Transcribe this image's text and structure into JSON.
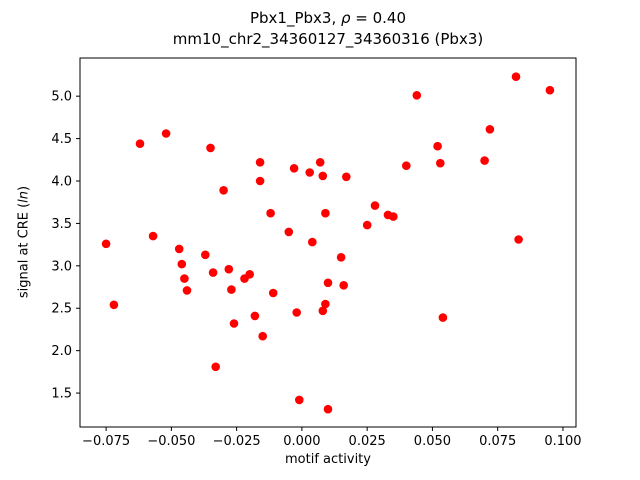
{
  "chart_data": {
    "type": "scatter",
    "title_parts": {
      "prefix": "Pbx1_Pbx3, ",
      "rho": "ρ",
      "suffix": " = 0.40"
    },
    "subtitle": "mm10_chr2_34360127_34360316 (Pbx3)",
    "xlabel": "motif activity",
    "ylabel_parts": {
      "prefix": "signal at CRE (",
      "italic": "ln",
      "suffix": ")"
    },
    "marker_color": "#ff0000",
    "axis_color": "#000000",
    "xlim": [
      -0.085,
      0.105
    ],
    "ylim": [
      1.1,
      5.45
    ],
    "x_ticks": [
      -0.075,
      -0.05,
      -0.025,
      0.0,
      0.025,
      0.05,
      0.075,
      0.1
    ],
    "x_tick_labels": [
      "−0.075",
      "−0.050",
      "−0.025",
      "0.000",
      "0.025",
      "0.050",
      "0.075",
      "0.100"
    ],
    "y_ticks": [
      1.5,
      2.0,
      2.5,
      3.0,
      3.5,
      4.0,
      4.5,
      5.0
    ],
    "y_tick_labels": [
      "1.5",
      "2.0",
      "2.5",
      "3.0",
      "3.5",
      "4.0",
      "4.5",
      "5.0"
    ],
    "legend": "none",
    "grid": false,
    "points": [
      [
        -0.075,
        3.26
      ],
      [
        -0.072,
        2.54
      ],
      [
        -0.062,
        4.44
      ],
      [
        -0.057,
        3.35
      ],
      [
        -0.052,
        4.56
      ],
      [
        -0.047,
        3.2
      ],
      [
        -0.046,
        3.02
      ],
      [
        -0.045,
        2.85
      ],
      [
        -0.044,
        2.71
      ],
      [
        -0.037,
        3.13
      ],
      [
        -0.035,
        4.39
      ],
      [
        -0.034,
        2.92
      ],
      [
        -0.033,
        1.81
      ],
      [
        -0.03,
        3.89
      ],
      [
        -0.028,
        2.96
      ],
      [
        -0.027,
        2.72
      ],
      [
        -0.026,
        2.32
      ],
      [
        -0.022,
        2.85
      ],
      [
        -0.02,
        2.9
      ],
      [
        -0.018,
        2.41
      ],
      [
        -0.016,
        4.22
      ],
      [
        -0.016,
        4.0
      ],
      [
        -0.015,
        2.17
      ],
      [
        -0.012,
        3.62
      ],
      [
        -0.011,
        2.68
      ],
      [
        -0.005,
        3.4
      ],
      [
        -0.003,
        4.15
      ],
      [
        -0.002,
        2.45
      ],
      [
        -0.001,
        1.42
      ],
      [
        0.003,
        4.1
      ],
      [
        0.004,
        3.28
      ],
      [
        0.007,
        4.22
      ],
      [
        0.008,
        4.06
      ],
      [
        0.008,
        2.47
      ],
      [
        0.009,
        2.55
      ],
      [
        0.009,
        3.62
      ],
      [
        0.01,
        2.8
      ],
      [
        0.01,
        1.31
      ],
      [
        0.015,
        3.1
      ],
      [
        0.016,
        2.77
      ],
      [
        0.017,
        4.05
      ],
      [
        0.025,
        3.48
      ],
      [
        0.028,
        3.71
      ],
      [
        0.033,
        3.6
      ],
      [
        0.035,
        3.58
      ],
      [
        0.04,
        4.18
      ],
      [
        0.044,
        5.01
      ],
      [
        0.052,
        4.41
      ],
      [
        0.053,
        4.21
      ],
      [
        0.054,
        2.39
      ],
      [
        0.07,
        4.24
      ],
      [
        0.072,
        4.61
      ],
      [
        0.082,
        5.23
      ],
      [
        0.083,
        3.31
      ],
      [
        0.095,
        5.07
      ]
    ]
  }
}
